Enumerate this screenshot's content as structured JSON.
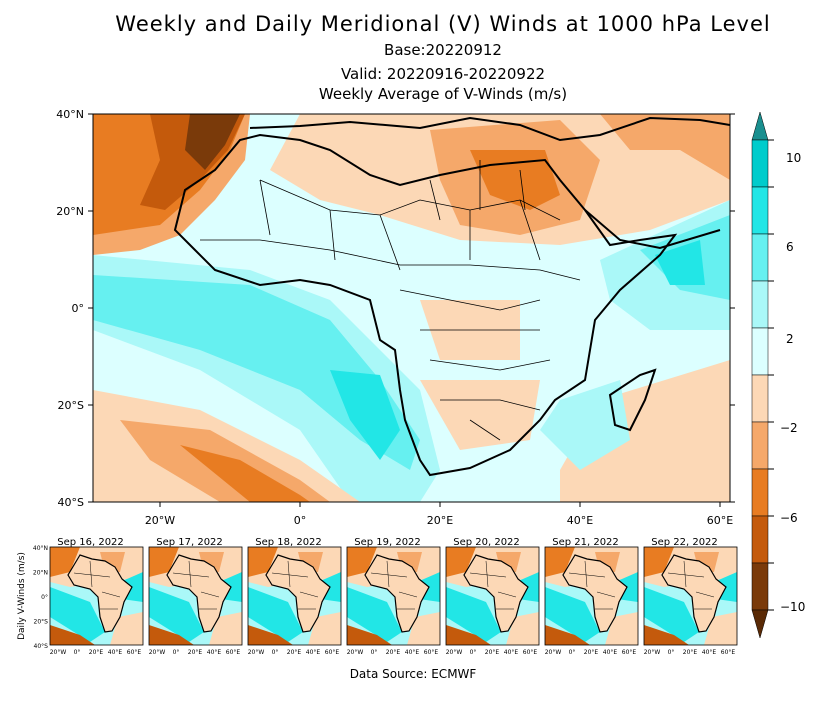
{
  "title": "Weekly and Daily Meridional (V) Winds at 1000 hPa Level",
  "base": "Base:20220912",
  "valid": "Valid: 20220916-20220922",
  "subtitle": "Weekly Average of V-Winds (m/s)",
  "map": {
    "lat_labels": [
      "40°N",
      "20°N",
      "0°",
      "20°S",
      "40°S"
    ],
    "lon_labels": [
      "20°W",
      "0°",
      "20°E",
      "40°E",
      "60°E"
    ],
    "extent": {
      "lon": [
        -30,
        60
      ],
      "lat": [
        -40,
        40
      ]
    }
  },
  "colorbar": {
    "labels": [
      "10",
      "6",
      "2",
      "−2",
      "−6",
      "−10"
    ],
    "bins": [
      {
        "min": 10,
        "color": "#1a8f8f"
      },
      {
        "min": 8,
        "color": "#00cccc"
      },
      {
        "min": 6,
        "color": "#22e6e6"
      },
      {
        "min": 4,
        "color": "#66f0f0"
      },
      {
        "min": 2,
        "color": "#aaf8f8"
      },
      {
        "min": 0,
        "color": "#dcffff"
      },
      {
        "min": -2,
        "color": "#fcd8b6"
      },
      {
        "min": -4,
        "color": "#f5a86a"
      },
      {
        "min": -6,
        "color": "#e87c22"
      },
      {
        "min": -8,
        "color": "#c45a0c"
      },
      {
        "min": -10,
        "color": "#7a3a0a"
      },
      {
        "min": -99,
        "color": "#5a2a06"
      }
    ]
  },
  "daily": {
    "ylabel": "Daily V-Winds (m/s)",
    "lat_labels": [
      "40°N",
      "20°N",
      "0°",
      "20°S",
      "40°S"
    ],
    "lon_labels": [
      "20°W",
      "0°",
      "20°E",
      "40°E",
      "60°E"
    ],
    "panels": [
      {
        "date": "Sep 16, 2022"
      },
      {
        "date": "Sep 17, 2022"
      },
      {
        "date": "Sep 18, 2022"
      },
      {
        "date": "Sep 19, 2022"
      },
      {
        "date": "Sep 20, 2022"
      },
      {
        "date": "Sep 21, 2022"
      },
      {
        "date": "Sep 22, 2022"
      }
    ]
  },
  "source": "Data Source: ECMWF"
}
